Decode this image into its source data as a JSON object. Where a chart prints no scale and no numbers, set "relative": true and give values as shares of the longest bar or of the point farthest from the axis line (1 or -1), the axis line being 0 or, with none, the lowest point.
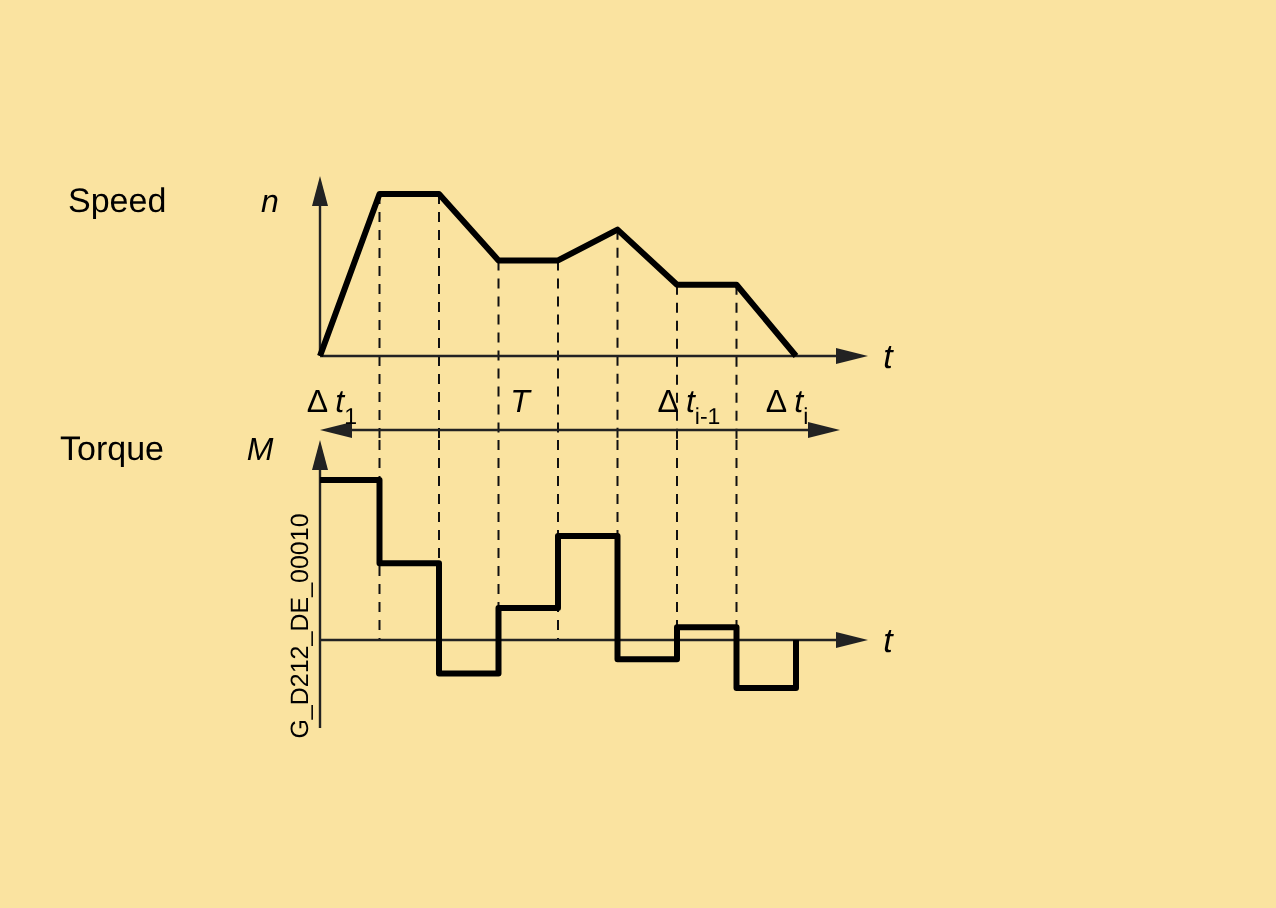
{
  "chart_data": [
    {
      "type": "line",
      "title": "Speed",
      "ylabel": "n",
      "xlabel": "t",
      "relative": true,
      "grid": "x",
      "line_style": "solid",
      "categories": [
        null,
        null,
        null,
        null,
        null,
        null,
        null,
        null,
        null
      ],
      "series": [
        {
          "color": "#000000",
          "values": [
            0,
            1,
            1,
            0.59,
            0.59,
            0.78,
            0.44,
            0.44,
            0
          ]
        }
      ]
    },
    {
      "type": "step",
      "title": "Torque",
      "ylabel": "M",
      "xlabel": "t",
      "relative": true,
      "grid": "x",
      "line_style": "solid",
      "categories": [
        null,
        null,
        null,
        null,
        null,
        null,
        null,
        null,
        null
      ],
      "series": [
        {
          "color": "#000000",
          "values": [
            1,
            0.48,
            -0.21,
            0.2,
            0.65,
            -0.12,
            0.08,
            -0.3,
            0
          ]
        }
      ],
      "annotations": [
        "Δ t$_{1}$",
        "T",
        "Δ t$_{i-1}$",
        "Δ t$_{i}$",
        "G_D212_DE_00010"
      ]
    }
  ]
}
